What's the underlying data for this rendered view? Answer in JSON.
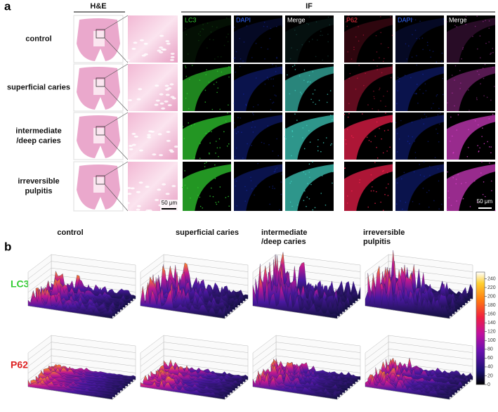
{
  "panel_a": {
    "label": "a",
    "he_header": "H&E",
    "if_header": "IF",
    "rows": [
      [
        "control"
      ],
      [
        "superficial caries"
      ],
      [
        "intermediate",
        "/deep caries"
      ],
      [
        "irreversible",
        "pulpitis"
      ]
    ],
    "channels": [
      "LC3",
      "DAPI",
      "Merge",
      "P62",
      "DAPI",
      "Merge"
    ],
    "scale_bars": [
      "50 μm",
      "50 μm"
    ]
  },
  "panel_b": {
    "label": "b",
    "columns": [
      [
        "control"
      ],
      [
        "superficial caries"
      ],
      [
        "intermediate",
        "/deep caries"
      ],
      [
        "irreversible",
        "pulpitis"
      ]
    ],
    "rows": [
      "LC3",
      "P62"
    ],
    "colorbar": {
      "lim": [
        0,
        255
      ],
      "ticks": [
        0,
        20,
        40,
        60,
        80,
        100,
        120,
        140,
        160,
        180,
        200,
        220,
        240
      ]
    }
  }
}
